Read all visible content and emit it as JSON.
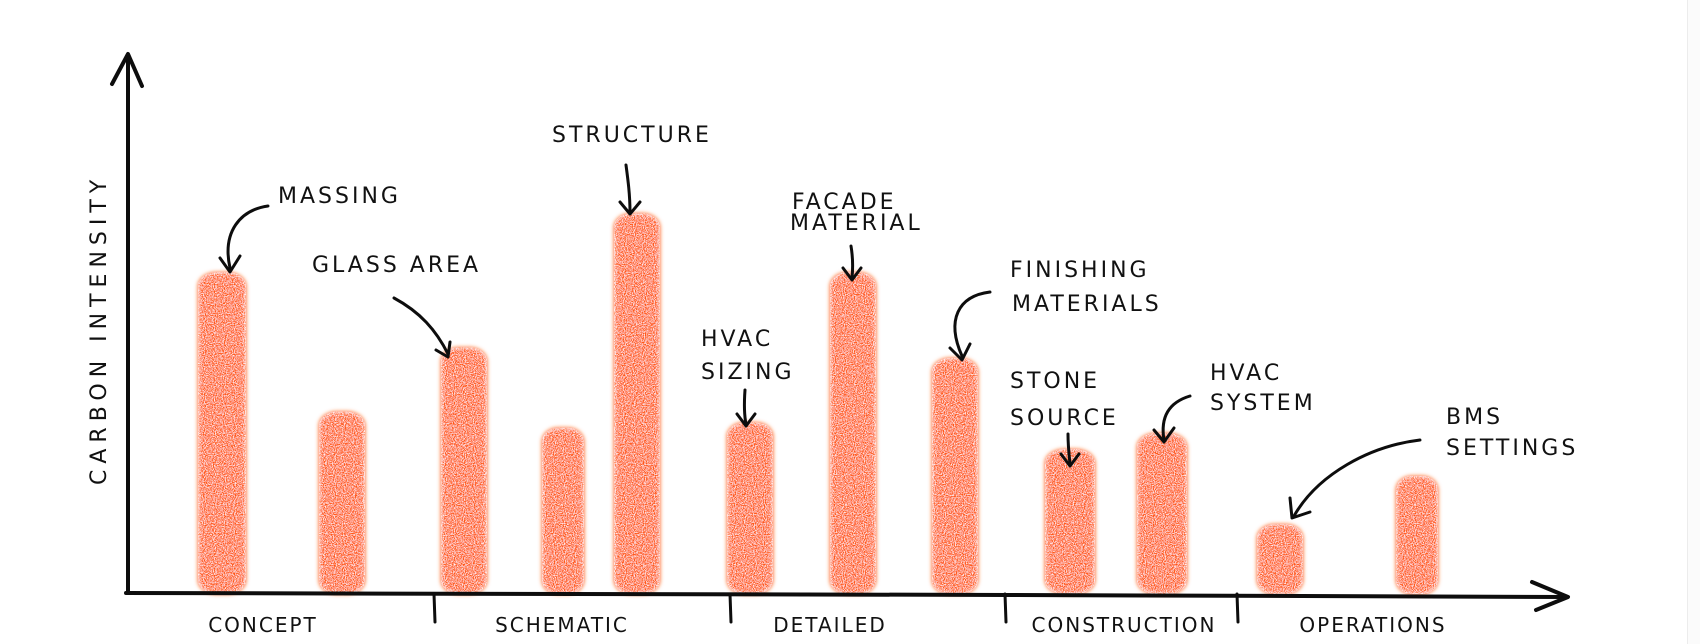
{
  "chart_data": {
    "type": "bar",
    "style": "hand-drawn sketch, crayon texture",
    "ylabel": "CARBON INTENSITY",
    "xlabel": "",
    "grid": false,
    "ylim": [
      0,
      100
    ],
    "bar_color": "#ff5a14",
    "phases": [
      {
        "label": "CONCEPT",
        "bars": [
          {
            "value": 60,
            "annotation": "MASSING"
          },
          {
            "value": 34,
            "annotation": ""
          }
        ]
      },
      {
        "label": "SCHEMATIC",
        "bars": [
          {
            "value": 46,
            "annotation": "GLASS AREA"
          },
          {
            "value": 31,
            "annotation": ""
          },
          {
            "value": 71,
            "annotation": "STRUCTURE"
          }
        ]
      },
      {
        "label": "DETAILED",
        "bars": [
          {
            "value": 32,
            "annotation": "HVAC SIZING"
          },
          {
            "value": 60,
            "annotation": "FACADE MATERIAL"
          },
          {
            "value": 44,
            "annotation": "FINISHING MATERIALS"
          }
        ]
      },
      {
        "label": "CONSTRUCTION",
        "bars": [
          {
            "value": 27,
            "annotation": "STONE SOURCE"
          },
          {
            "value": 30,
            "annotation": "HVAC SYSTEM"
          }
        ]
      },
      {
        "label": "OPERATIONS",
        "bars": [
          {
            "value": 13,
            "annotation": "BMS SETTINGS"
          },
          {
            "value": 22,
            "annotation": ""
          }
        ]
      }
    ]
  }
}
